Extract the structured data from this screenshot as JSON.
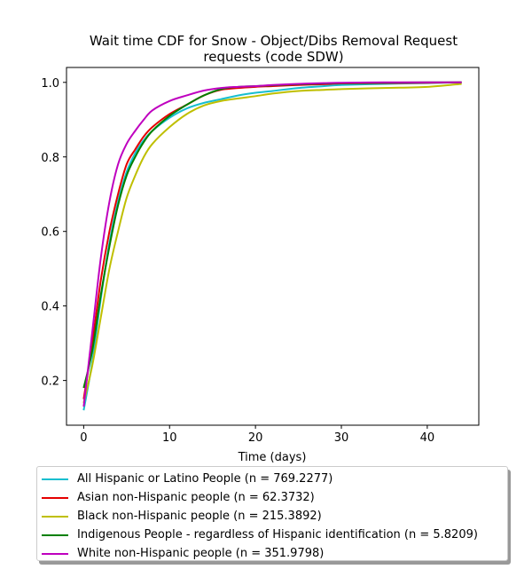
{
  "chart_data": {
    "type": "line",
    "title": "Wait time CDF for Snow - Object/Dibs Removal Request",
    "title_line2": "requests (code SDW)",
    "xlabel": "Time (days)",
    "ylabel": "",
    "xlim": [
      -2,
      46
    ],
    "ylim": [
      0.08,
      1.04
    ],
    "xticks": [
      0,
      10,
      20,
      30,
      40
    ],
    "yticks": [
      0.2,
      0.4,
      0.6,
      0.8,
      1.0
    ],
    "ytick_labels": [
      "0.2",
      "0.4",
      "0.6",
      "0.8",
      "1.0"
    ],
    "grid": false,
    "legend_position": "below",
    "series": [
      {
        "name": "All Hispanic or Latino People (n = 769.2277)",
        "color": "#17becf",
        "x": [
          0,
          1,
          2,
          3,
          4,
          5,
          6,
          7,
          8,
          10,
          12,
          14,
          16,
          18,
          20,
          22,
          25,
          28,
          30,
          35,
          40,
          44
        ],
        "y": [
          0.12,
          0.25,
          0.42,
          0.57,
          0.68,
          0.76,
          0.81,
          0.845,
          0.87,
          0.905,
          0.93,
          0.945,
          0.955,
          0.965,
          0.972,
          0.977,
          0.985,
          0.99,
          0.993,
          0.996,
          0.998,
          1.0
        ]
      },
      {
        "name": "Asian non-Hispanic people (n = 62.3732)",
        "color": "#e50000",
        "x": [
          0,
          1,
          2,
          3,
          4,
          5,
          6,
          7,
          8,
          10,
          12,
          14,
          16,
          18,
          20,
          22,
          25,
          28,
          30,
          35,
          40,
          44
        ],
        "y": [
          0.15,
          0.3,
          0.47,
          0.6,
          0.7,
          0.78,
          0.82,
          0.855,
          0.88,
          0.915,
          0.94,
          0.965,
          0.98,
          0.985,
          0.988,
          0.99,
          0.993,
          0.995,
          0.997,
          0.998,
          0.999,
          1.0
        ]
      },
      {
        "name": "Black non-Hispanic people (n = 215.3892)",
        "color": "#bfbf00",
        "x": [
          0,
          1,
          2,
          3,
          4,
          5,
          6,
          7,
          8,
          10,
          12,
          14,
          16,
          18,
          20,
          22,
          25,
          28,
          30,
          35,
          40,
          44
        ],
        "y": [
          0.14,
          0.24,
          0.37,
          0.5,
          0.6,
          0.69,
          0.75,
          0.8,
          0.835,
          0.88,
          0.915,
          0.938,
          0.95,
          0.957,
          0.963,
          0.97,
          0.977,
          0.98,
          0.982,
          0.985,
          0.988,
          0.996
        ]
      },
      {
        "name": "Indigenous People - regardless of Hispanic identification (n = 5.8209)",
        "color": "#008000",
        "x": [
          0,
          1,
          2,
          3,
          4,
          5,
          6,
          7,
          8,
          10,
          12,
          14,
          16,
          18,
          20,
          22,
          25,
          28,
          30,
          35,
          40,
          44
        ],
        "y": [
          0.18,
          0.28,
          0.43,
          0.56,
          0.67,
          0.75,
          0.8,
          0.84,
          0.87,
          0.91,
          0.94,
          0.965,
          0.982,
          0.988,
          0.99,
          0.992,
          0.995,
          0.997,
          0.998,
          0.999,
          1.0,
          1.0
        ]
      },
      {
        "name": "White non-Hispanic people (n = 351.9798)",
        "color": "#bf00bf",
        "x": [
          0,
          1,
          2,
          3,
          4,
          5,
          6,
          7,
          8,
          10,
          12,
          14,
          16,
          18,
          20,
          22,
          25,
          28,
          30,
          35,
          40,
          44
        ],
        "y": [
          0.13,
          0.33,
          0.53,
          0.68,
          0.78,
          0.835,
          0.87,
          0.9,
          0.925,
          0.95,
          0.965,
          0.978,
          0.985,
          0.988,
          0.99,
          0.993,
          0.996,
          0.998,
          0.999,
          1.0,
          1.0,
          1.0
        ]
      }
    ]
  }
}
